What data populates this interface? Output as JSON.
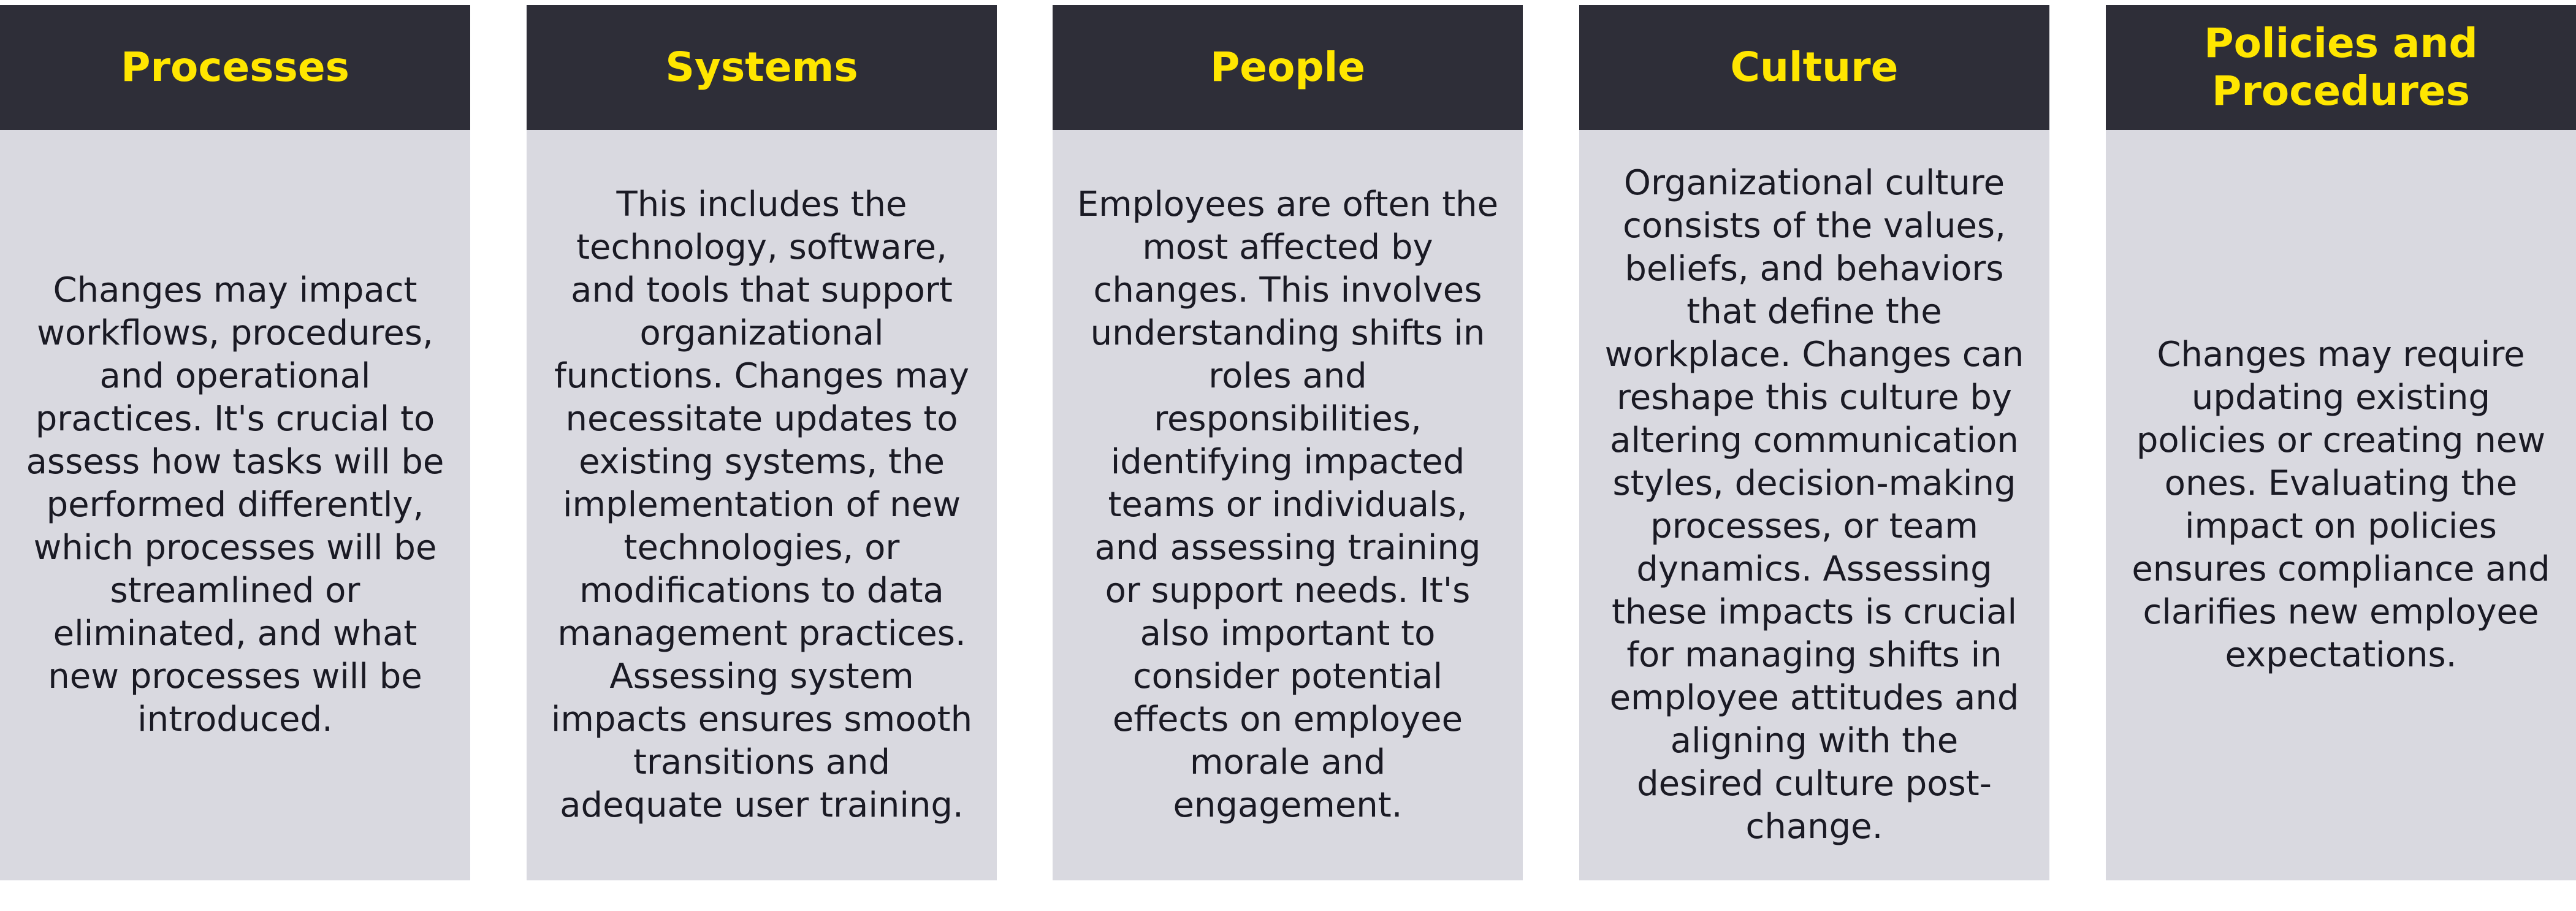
{
  "colors": {
    "header_background": "#2e2e38",
    "header_text": "#ffe600",
    "body_background": "#d9d9e0",
    "body_text": "#1a1a24"
  },
  "cards": [
    {
      "title": "Processes",
      "text": "Changes may impact workflows, procedures, and operational practices. It's crucial to assess how tasks will be performed differently, which processes will be streamlined or eliminated, and what new processes will be introduced."
    },
    {
      "title": "Systems",
      "text": "This includes the technology, software, and tools that support organizational functions. Changes may necessitate updates to existing systems, the implementation of new technologies, or modifications to data management practices. Assessing system impacts ensures smooth transitions and adequate user training."
    },
    {
      "title": "People",
      "text": "Employees are often the most affected by changes. This involves understanding shifts in roles and responsibilities, identifying impacted teams or individuals, and assessing training or support needs. It's also important to consider potential effects on employee morale and engagement."
    },
    {
      "title": "Culture",
      "text": "Organizational culture consists of the values, beliefs, and behaviors that define the workplace. Changes can reshape this culture by altering communication styles, decision-making processes, or team dynamics. Assessing these impacts is crucial for managing shifts in employee attitudes and aligning with the desired culture post-change."
    },
    {
      "title": "Policies and Procedures",
      "text": "Changes may require updating existing policies or creating new ones. Evaluating the impact on policies ensures compliance and clarifies new employee expectations."
    }
  ]
}
